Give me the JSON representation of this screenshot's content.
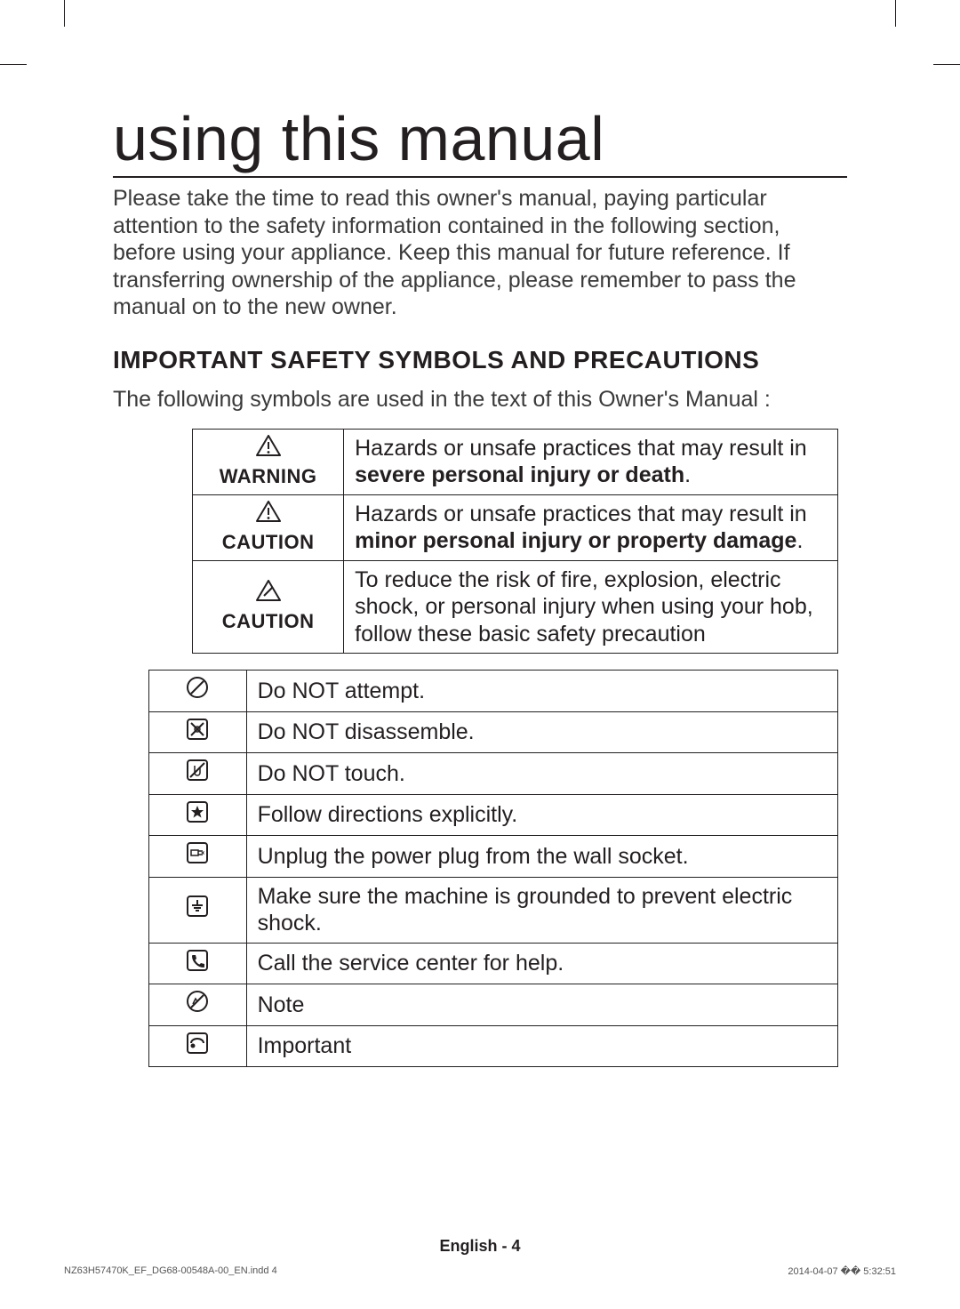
{
  "title": "using this manual",
  "intro": "Please take the time to read this owner's manual, paying particular attention to the safety information contained in the following section, before using your appliance. Keep this manual for future reference. If transferring ownership of the appliance, please remember to pass the manual on to the new owner.",
  "section_heading": "IMPORTANT SAFETY SYMBOLS AND PRECAUTIONS",
  "section_sub": "The following symbols are used in the text of this Owner's Manual :",
  "table1": {
    "rows": [
      {
        "label": "WARNING",
        "icon": "warning-triangle",
        "text_pre": "Hazards or unsafe practices that may result in ",
        "text_bold": "severe personal injury or death",
        "text_post": "."
      },
      {
        "label": "CAUTION",
        "icon": "warning-triangle",
        "text_pre": "Hazards or unsafe practices that may result in ",
        "text_bold": "minor personal injury or property damage",
        "text_post": "."
      },
      {
        "label": "CAUTION",
        "icon": "caution-slash",
        "text_pre": "To reduce the risk of fire, explosion, electric shock, or personal injury when using your hob, follow these basic safety precaution",
        "text_bold": "",
        "text_post": ""
      }
    ]
  },
  "table2": {
    "rows": [
      {
        "icon": "no-circle",
        "text": "Do NOT attempt."
      },
      {
        "icon": "no-disassemble",
        "text": "Do NOT disassemble."
      },
      {
        "icon": "no-touch",
        "text": "Do NOT touch."
      },
      {
        "icon": "star-box",
        "text": "Follow directions explicitly."
      },
      {
        "icon": "unplug",
        "text": "Unplug the power plug from the wall socket."
      },
      {
        "icon": "ground",
        "text": "Make sure the machine is grounded to prevent electric shock."
      },
      {
        "icon": "phone",
        "text": "Call the service center for help."
      },
      {
        "icon": "note",
        "text": "Note"
      },
      {
        "icon": "important",
        "text": "Important"
      }
    ]
  },
  "footer": "English - 4",
  "print_left": "NZ63H57470K_EF_DG68-00548A-00_EN.indd   4",
  "print_right": "2014-04-07   �� 5:32:51",
  "colors": {
    "text": "#231f20",
    "border": "#231f20",
    "bg": "#ffffff"
  },
  "icons_svg": {
    "warning-triangle": "<svg width='28' height='24' viewBox='0 0 28 24'><path d='M14 1 L27 23 L1 23 Z' fill='none' stroke='#231f20' stroke-width='2' stroke-linejoin='round'/><line x1='14' y1='8' x2='14' y2='16' stroke='#231f20' stroke-width='2'/><circle cx='14' cy='19.5' r='1.4' fill='#231f20'/></svg>",
    "caution-slash": "<svg width='28' height='24' viewBox='0 0 28 24'><path d='M14 1 L27 23 L1 23 Z' fill='none' stroke='#231f20' stroke-width='2' stroke-linejoin='round'/><line x1='9' y1='18' x2='19' y2='8' stroke='#231f20' stroke-width='2'/></svg>",
    "no-circle": "<svg width='26' height='26' viewBox='0 0 26 26'><circle cx='13' cy='13' r='11' fill='none' stroke='#231f20' stroke-width='2'/><line x1='6' y1='20' x2='20' y2='6' stroke='#231f20' stroke-width='2'/></svg>",
    "no-disassemble": "<svg width='26' height='26' viewBox='0 0 26 26'><rect x='2' y='2' width='22' height='22' rx='3' fill='none' stroke='#231f20' stroke-width='2'/><line x1='6' y1='6' x2='20' y2='20' stroke='#231f20' stroke-width='2'/><line x1='20' y1='6' x2='6' y2='20' stroke='#231f20' stroke-width='2'/><circle cx='13' cy='13' r='3' fill='none' stroke='#231f20' stroke-width='1.5'/></svg>",
    "no-touch": "<svg width='26' height='26' viewBox='0 0 26 26'><rect x='2' y='2' width='22' height='22' rx='3' fill='none' stroke='#231f20' stroke-width='2'/><path d='M10 8 v8 a3 3 0 0 0 6 0 v-5' fill='none' stroke='#231f20' stroke-width='1.5'/><line x1='5' y1='21' x2='21' y2='5' stroke='#231f20' stroke-width='2'/></svg>",
    "star-box": "<svg width='26' height='26' viewBox='0 0 26 26'><rect x='2' y='2' width='22' height='22' rx='3' fill='none' stroke='#231f20' stroke-width='2'/><path d='M13 6 l2 5 5 0 -4 3.5 1.5 5 -4.5-3 -4.5 3 1.5-5 -4-3.5 5 0 z' fill='#231f20'/></svg>",
    "unplug": "<svg width='26' height='26' viewBox='0 0 26 26'><rect x='2' y='2' width='22' height='22' rx='3' fill='none' stroke='#231f20' stroke-width='2'/><rect x='6' y='10' width='8' height='6' fill='none' stroke='#231f20' stroke-width='1.5'/><line x1='14' y1='11' x2='19' y2='11' stroke='#231f20' stroke-width='1.5'/><line x1='14' y1='15' x2='19' y2='15' stroke='#231f20' stroke-width='1.5'/><path d='M17 13 l4 -2 -1 2 1 2 z' fill='#231f20'/></svg>",
    "ground": "<svg width='26' height='26' viewBox='0 0 26 26'><rect x='2' y='2' width='22' height='22' rx='3' fill='none' stroke='#231f20' stroke-width='2'/><line x1='13' y1='6' x2='13' y2='12' stroke='#231f20' stroke-width='2'/><line x1='7' y1='12' x2='19' y2='12' stroke='#231f20' stroke-width='2'/><line x1='9' y1='15' x2='17' y2='15' stroke='#231f20' stroke-width='2'/><line x1='11' y1='18' x2='15' y2='18' stroke='#231f20' stroke-width='2'/></svg>",
    "phone": "<svg width='26' height='26' viewBox='0 0 26 26'><rect x='2' y='2' width='22' height='22' rx='3' fill='none' stroke='#231f20' stroke-width='2'/><path d='M8 7 q-1 0 -1 1 q0 5 4 9 q4 4 9 4 q1 0 1 -1 l0 -3 l-4 -1 l-1.5 1.5 q-3 -1 -5 -5 l1.5 -1.5 l-1 -4 z' fill='#231f20'/></svg>",
    "note": "<svg width='26' height='26' viewBox='0 0 26 26'><circle cx='13' cy='13' r='11' fill='none' stroke='#231f20' stroke-width='2'/><line x1='6' y1='20' x2='20' y2='6' stroke='#231f20' stroke-width='2'/><path d='M8 16 l3 -6 l2 3' fill='none' stroke='#231f20' stroke-width='1.5'/></svg>",
    "important": "<svg width='26' height='26' viewBox='0 0 26 26'><rect x='2' y='2' width='22' height='22' rx='3' fill='none' stroke='#231f20' stroke-width='2'/><path d='M6 13 a7 5 0 0 1 14 0' fill='none' stroke='#231f20' stroke-width='2'/><circle cx='8' cy='16' r='2.5' fill='#231f20'/></svg>"
  }
}
